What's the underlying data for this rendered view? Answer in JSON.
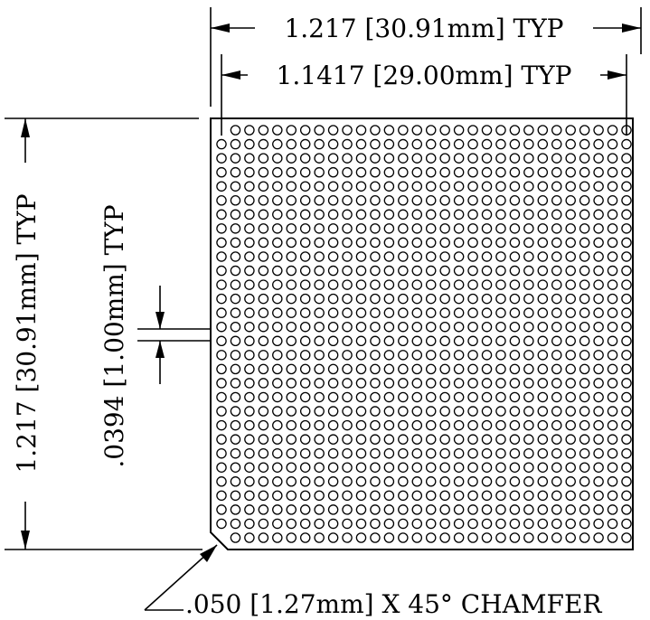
{
  "drawing": {
    "dimensions": {
      "outer_width": "1.217  [30.91mm]  TYP",
      "pitch_span_width": "1.1417  [29.00mm]  TYP",
      "outer_height": "1.217  [30.91mm]  TYP",
      "ball_pitch": ".0394  [1.00mm]  TYP",
      "chamfer": ".050  [1.27mm]  X  45°  CHAMFER"
    },
    "ball_grid": {
      "rows": 30,
      "columns": 30,
      "missing_corner_balls": [
        "top-left",
        "bottom-left"
      ]
    },
    "colors": {
      "ink": "#000000",
      "paper": "#ffffff"
    }
  }
}
